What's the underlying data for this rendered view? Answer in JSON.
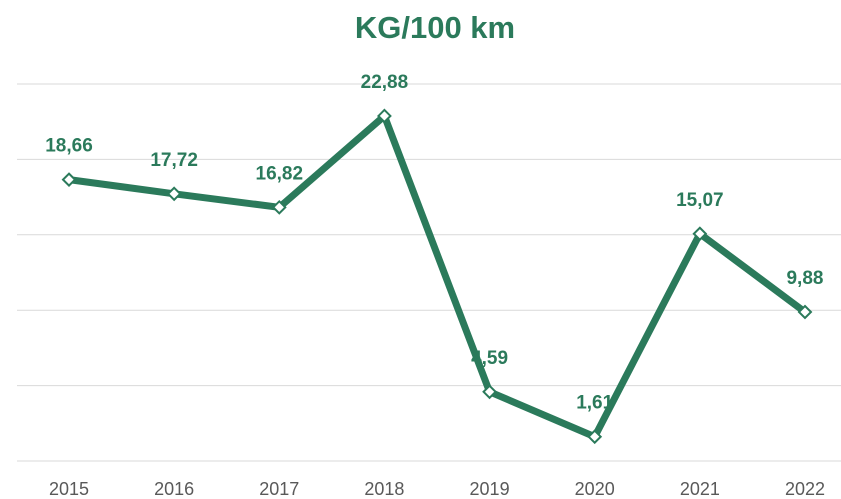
{
  "chart_data": {
    "type": "line",
    "title": "KG/100 km",
    "categories": [
      "2015",
      "2016",
      "2017",
      "2018",
      "2019",
      "2020",
      "2021",
      "2022"
    ],
    "series": [
      {
        "name": "KG/100 km",
        "color": "#2b7a5b",
        "values": [
          18.66,
          17.72,
          16.82,
          22.88,
          4.59,
          1.61,
          15.07,
          9.88
        ],
        "value_labels": [
          "18,66",
          "17,72",
          "16,82",
          "22,88",
          "4,59",
          "1,61",
          "15,07",
          "9,88"
        ]
      }
    ],
    "ylim": [
      0,
      25
    ],
    "yticks": [
      0,
      5,
      10,
      15,
      20,
      25
    ],
    "grid": true
  }
}
